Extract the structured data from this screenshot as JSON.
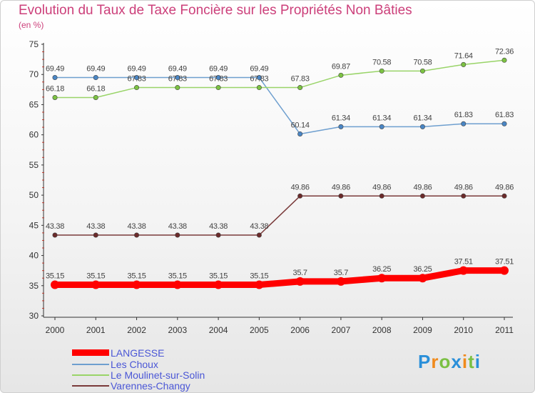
{
  "title": "Evolution du Taux de Taxe Foncière sur les Propriétés Non Bâties",
  "unit": "(en %)",
  "logo": "Proxiti",
  "chart_data": {
    "type": "line",
    "title": "Evolution du Taux de Taxe Foncière sur les Propriétés Non Bâties",
    "ylabel": "(en %)",
    "xlabel": "",
    "x": [
      "2000",
      "2001",
      "2002",
      "2003",
      "2004",
      "2005",
      "2006",
      "2007",
      "2008",
      "2009",
      "2010",
      "2011"
    ],
    "ylim": [
      30,
      75
    ],
    "yticks": [
      "30",
      "35",
      "40",
      "45",
      "50",
      "55",
      "60",
      "65",
      "70",
      "75"
    ],
    "grid": false,
    "legend_position": "bottom-left",
    "series": [
      {
        "name": "LANGESSE",
        "color": "#ff0000",
        "values": [
          35.15,
          35.15,
          35.15,
          35.15,
          35.15,
          35.15,
          35.7,
          35.7,
          36.25,
          36.25,
          37.51,
          37.51
        ],
        "labels": [
          "35.15",
          "35.15",
          "35.15",
          "35.15",
          "35.15",
          "35.15",
          "35.7",
          "35.7",
          "36.25",
          "36.25",
          "37.51",
          "37.51"
        ]
      },
      {
        "name": "Les Choux",
        "color": "#6e9fcf",
        "values": [
          69.49,
          69.49,
          69.49,
          69.49,
          69.49,
          69.49,
          60.14,
          61.34,
          61.34,
          61.34,
          61.83,
          61.83
        ],
        "labels": [
          "69.49",
          "69.49",
          "69.49",
          "69.49",
          "69.49",
          "69.49",
          "60.14",
          "61.34",
          "61.34",
          "61.34",
          "61.83",
          "61.83"
        ]
      },
      {
        "name": "Le Moulinet-sur-Solin",
        "color": "#99d468",
        "values": [
          66.18,
          66.18,
          67.83,
          67.83,
          67.83,
          67.83,
          67.83,
          69.87,
          70.58,
          70.58,
          71.64,
          72.36
        ],
        "labels": [
          "66.18",
          "66.18",
          "67.83",
          "67.83",
          "67.83",
          "67.83",
          "67.83",
          "69.87",
          "70.58",
          "70.58",
          "71.64",
          "72.36"
        ]
      },
      {
        "name": "Varennes-Changy",
        "color": "#7a3a3a",
        "values": [
          43.38,
          43.38,
          43.38,
          43.38,
          43.38,
          43.38,
          49.86,
          49.86,
          49.86,
          49.86,
          49.86,
          49.86
        ],
        "labels": [
          "43.38",
          "43.38",
          "43.38",
          "43.38",
          "43.38",
          "43.38",
          "49.86",
          "49.86",
          "49.86",
          "49.86",
          "49.86",
          "49.86"
        ]
      }
    ]
  }
}
